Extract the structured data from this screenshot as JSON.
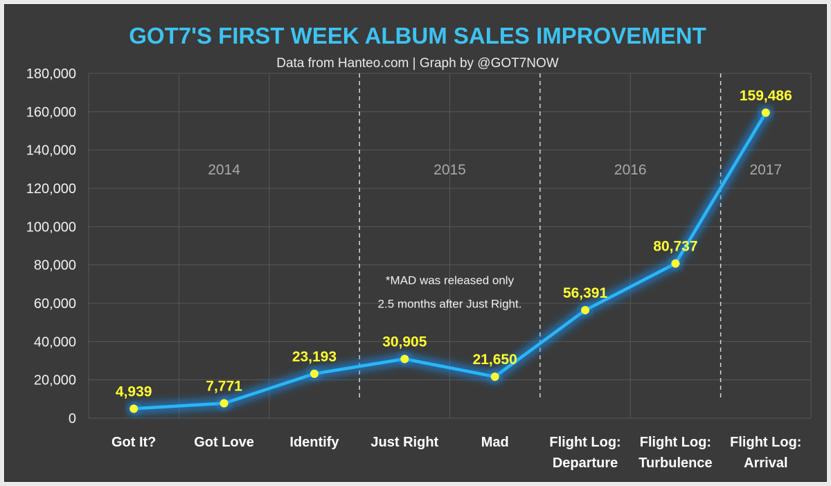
{
  "chart_data": {
    "type": "line",
    "title": "GOT7'S FIRST WEEK ALBUM SALES IMPROVEMENT",
    "subtitle": "Data from Hanteo.com | Graph by @GOT7NOW",
    "categories": [
      [
        "Got It?"
      ],
      [
        "Got Love"
      ],
      [
        "Identify"
      ],
      [
        "Just Right"
      ],
      [
        "Mad"
      ],
      [
        "Flight Log:",
        "Departure"
      ],
      [
        "Flight Log:",
        "Turbulence"
      ],
      [
        "Flight Log:",
        "Arrival"
      ]
    ],
    "values": [
      4939,
      7771,
      23193,
      30905,
      21650,
      56391,
      80737,
      159486
    ],
    "data_labels": [
      "4,939",
      "7,771",
      "23,193",
      "30,905",
      "21,650",
      "56,391",
      "80,737",
      "159,486"
    ],
    "ylim": [
      0,
      180000
    ],
    "y_ticks": [
      {
        "value": 0,
        "label": "0"
      },
      {
        "value": 20000,
        "label": "20,000"
      },
      {
        "value": 40000,
        "label": "40,000"
      },
      {
        "value": 60000,
        "label": "60,000"
      },
      {
        "value": 80000,
        "label": "80,000"
      },
      {
        "value": 100000,
        "label": "100,000"
      },
      {
        "value": 120000,
        "label": "120,000"
      },
      {
        "value": 140000,
        "label": "140,000"
      },
      {
        "value": 160000,
        "label": "160,000"
      },
      {
        "value": 180000,
        "label": "180,000"
      }
    ],
    "year_groups": [
      {
        "label": "2014",
        "start": 0,
        "end": 2
      },
      {
        "label": "2015",
        "start": 3,
        "end": 4
      },
      {
        "label": "2016",
        "start": 5,
        "end": 6
      },
      {
        "label": "2017",
        "start": 7,
        "end": 7
      }
    ],
    "annotation": {
      "lines": [
        "*MAD was released only",
        "2.5 months after Just Right."
      ],
      "between": [
        3,
        4
      ],
      "anchor_value": 70000
    },
    "grid": true,
    "legend": "none",
    "colors": {
      "background": "#3a3a3a",
      "line": "#29b6f6",
      "glow": "#1e88e5",
      "marker": "#ffff33",
      "title": "#3cc3f2",
      "data_label": "#ffff33"
    }
  }
}
